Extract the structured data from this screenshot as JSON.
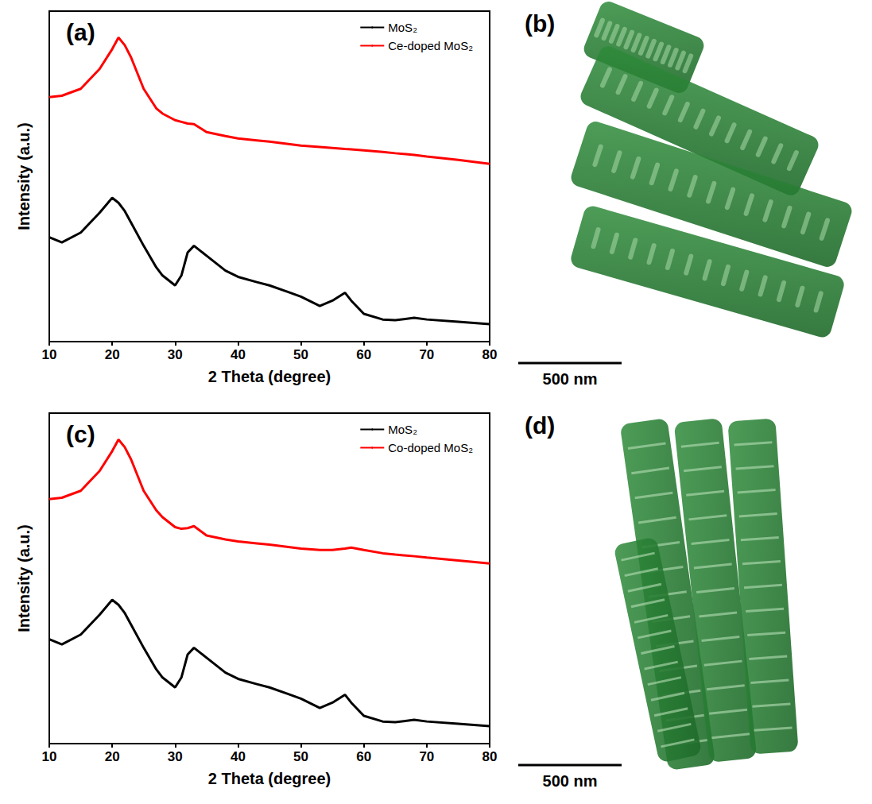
{
  "chart_data": [
    {
      "type": "line",
      "title": "(a)",
      "xlabel": "2 Theta (degree)",
      "ylabel": "Intensity (a.u.)",
      "x": [
        10,
        12,
        15,
        18,
        20,
        21,
        22,
        23,
        25,
        27,
        28,
        30,
        31,
        32,
        33,
        35,
        38,
        40,
        43,
        45,
        48,
        50,
        53,
        55,
        57,
        58,
        60,
        63,
        65,
        68,
        70,
        75,
        80
      ],
      "series": [
        {
          "name": "MoS₂",
          "color": "#000000",
          "values": [
            31.6,
            30,
            33,
            39,
            43.5,
            42,
            39.5,
            36,
            29,
            22.5,
            20,
            17,
            20,
            27,
            29,
            26,
            21.5,
            19.6,
            18,
            17,
            15,
            13.6,
            10.8,
            12.4,
            14.8,
            12.4,
            8.4,
            6.7,
            6.5,
            7.2,
            6.7,
            6,
            5.3
          ]
        },
        {
          "name": "Ce-doped MoS₂",
          "color": "#ff0000",
          "values": [
            74,
            74.4,
            76.5,
            82.5,
            88.5,
            92,
            89.7,
            86,
            76.5,
            70.6,
            69,
            67,
            66.5,
            66,
            65.8,
            63.4,
            62.2,
            61.5,
            60.9,
            60.5,
            59.8,
            59.3,
            58.9,
            58.6,
            58.3,
            58.2,
            57.9,
            57.4,
            57,
            56.5,
            56,
            55,
            53.8
          ]
        }
      ],
      "xlim": [
        10,
        80
      ],
      "xticks": [
        10,
        20,
        30,
        40,
        50,
        60,
        70,
        80
      ],
      "ylim": [
        0,
        100
      ],
      "tick_labels": "x",
      "grid": false,
      "legend": "upper right"
    },
    {
      "type": "line",
      "title": "(c)",
      "xlabel": "2 Theta (degree)",
      "ylabel": "Intensity (a.u.)",
      "x": [
        10,
        12,
        15,
        18,
        20,
        21,
        22,
        23,
        25,
        27,
        28,
        30,
        31,
        32,
        33,
        35,
        38,
        40,
        43,
        45,
        48,
        50,
        53,
        55,
        57,
        58,
        60,
        63,
        65,
        68,
        70,
        75,
        80
      ],
      "series": [
        {
          "name": "MoS₂",
          "color": "#000000",
          "values": [
            31.6,
            30,
            33,
            39,
            43.5,
            42,
            39.5,
            36,
            29,
            22.5,
            20,
            17,
            20,
            27,
            29,
            26,
            21.5,
            19.6,
            18,
            17,
            15,
            13.6,
            10.8,
            12.4,
            14.8,
            12.4,
            8.4,
            6.7,
            6.5,
            7.2,
            6.7,
            6,
            5.3
          ]
        },
        {
          "name": "Co-doped MoS₂",
          "color": "#ff0000",
          "values": [
            74,
            74.4,
            76.5,
            82.5,
            88.5,
            92,
            89.7,
            86,
            76.5,
            70.6,
            68.5,
            65.5,
            65,
            65.2,
            65.8,
            63,
            61.8,
            61.2,
            60.6,
            60.2,
            59.5,
            59,
            58.6,
            58.6,
            59,
            59.3,
            58.6,
            57.6,
            57.2,
            56.7,
            56.3,
            55.4,
            54.5
          ]
        }
      ],
      "xlim": [
        10,
        80
      ],
      "xticks": [
        10,
        20,
        30,
        40,
        50,
        60,
        70,
        80
      ],
      "ylim": [
        0,
        100
      ],
      "tick_labels": "x",
      "grid": false,
      "legend": "upper right"
    }
  ],
  "images": [
    {
      "label": "(b)",
      "scale_bar": "500 nm"
    },
    {
      "label": "(d)",
      "scale_bar": "500 nm"
    }
  ]
}
